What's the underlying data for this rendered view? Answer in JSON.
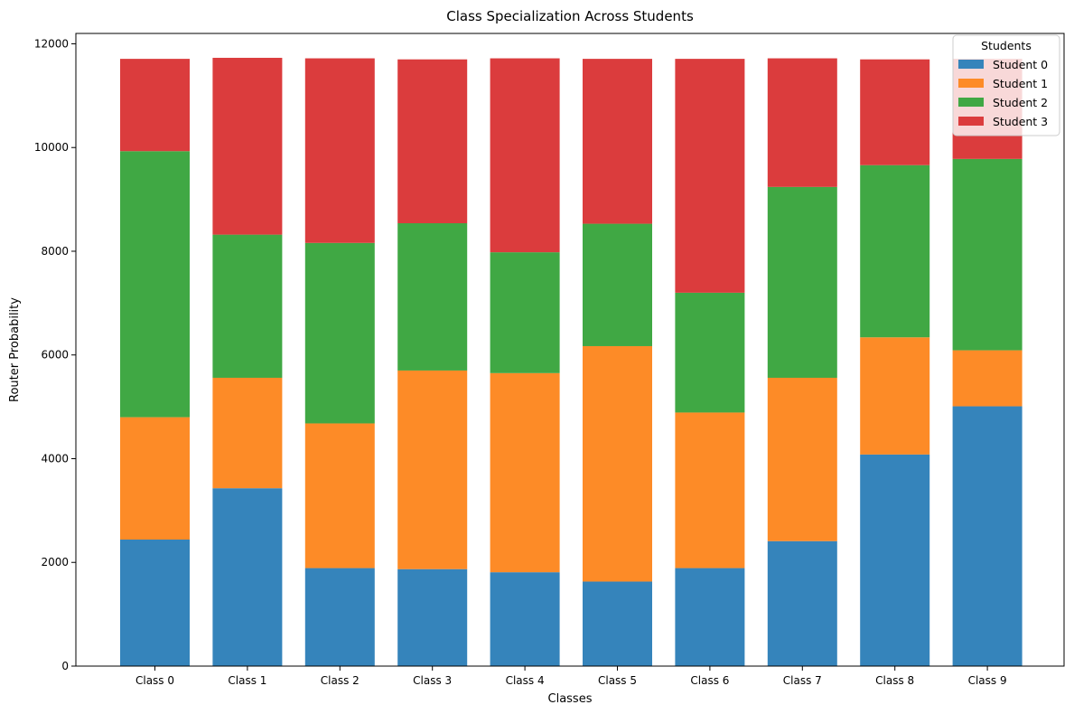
{
  "chart_data": {
    "type": "bar",
    "stacked": true,
    "title": "Class Specialization Across Students",
    "xlabel": "Classes",
    "ylabel": "Router Probability",
    "ylim": [
      0,
      12200
    ],
    "yticks": [
      0,
      2000,
      4000,
      6000,
      8000,
      10000,
      12000
    ],
    "grid": false,
    "categories": [
      "Class 0",
      "Class 1",
      "Class 2",
      "Class 3",
      "Class 4",
      "Class 5",
      "Class 6",
      "Class 7",
      "Class 8",
      "Class 9"
    ],
    "series": [
      {
        "name": "Student 0",
        "color": "#3584bb",
        "values": [
          2440,
          3430,
          1890,
          1870,
          1810,
          1630,
          1890,
          2410,
          4080,
          5010
        ]
      },
      {
        "name": "Student 1",
        "color": "#fd8b27",
        "values": [
          2360,
          2130,
          2790,
          3830,
          3840,
          4540,
          3000,
          3150,
          2260,
          1080
        ]
      },
      {
        "name": "Student 2",
        "color": "#40a844",
        "values": [
          5130,
          2760,
          3480,
          2840,
          2330,
          2360,
          2310,
          3680,
          3320,
          3690
        ]
      },
      {
        "name": "Student 3",
        "color": "#db3c3d",
        "values": [
          1780,
          3410,
          3560,
          3160,
          3740,
          3180,
          4510,
          2480,
          2040,
          1930
        ]
      }
    ],
    "legend": {
      "title": "Students",
      "position": "top-right"
    }
  }
}
